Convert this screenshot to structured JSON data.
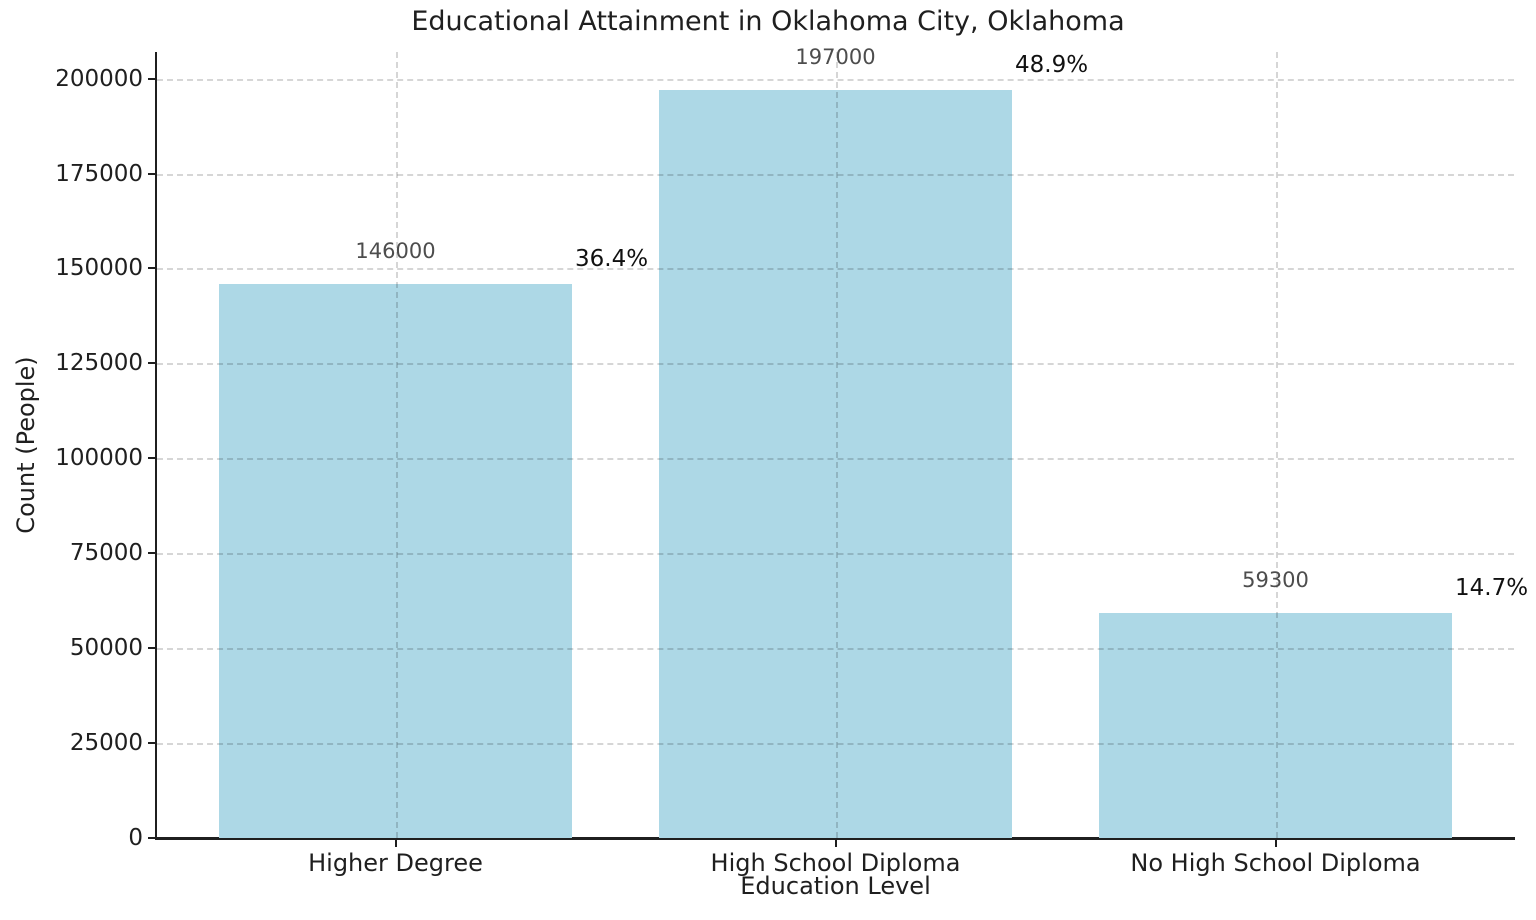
{
  "figure": {
    "title": "Educational Attainment in Oklahoma City, Oklahoma",
    "xlabel": "Education Level",
    "ylabel": "Count (People)"
  },
  "chart_data": {
    "type": "bar",
    "title": "Educational Attainment in Oklahoma City, Oklahoma",
    "xlabel": "Education Level",
    "ylabel": "Count (People)",
    "categories": [
      "Higher Degree",
      "High School Diploma",
      "No High School Diploma"
    ],
    "values": [
      146000,
      197000,
      59300
    ],
    "bar_value_labels": [
      "146000",
      "197000",
      "59300"
    ],
    "bar_pct_labels": [
      "36.4%",
      "48.9%",
      "14.7%"
    ],
    "yticks": [
      0,
      25000,
      50000,
      75000,
      100000,
      125000,
      150000,
      175000,
      200000
    ],
    "ytick_labels": [
      "0",
      "25000",
      "50000",
      "75000",
      "100000",
      "125000",
      "150000",
      "175000",
      "200000"
    ],
    "ylim": [
      0,
      207000
    ],
    "grid": {
      "style": "dashed",
      "axes": "both",
      "drawn_over_bars": true
    },
    "legend": "none",
    "colors": {
      "bar_fill": "#ADD8E6",
      "value_label": "#4d4d4d",
      "pct_label": "#111111",
      "axis_text": "#1f1f1f",
      "grid": "#cdcdcd",
      "spine": "#1f1f1f",
      "background": "#ffffff"
    }
  }
}
